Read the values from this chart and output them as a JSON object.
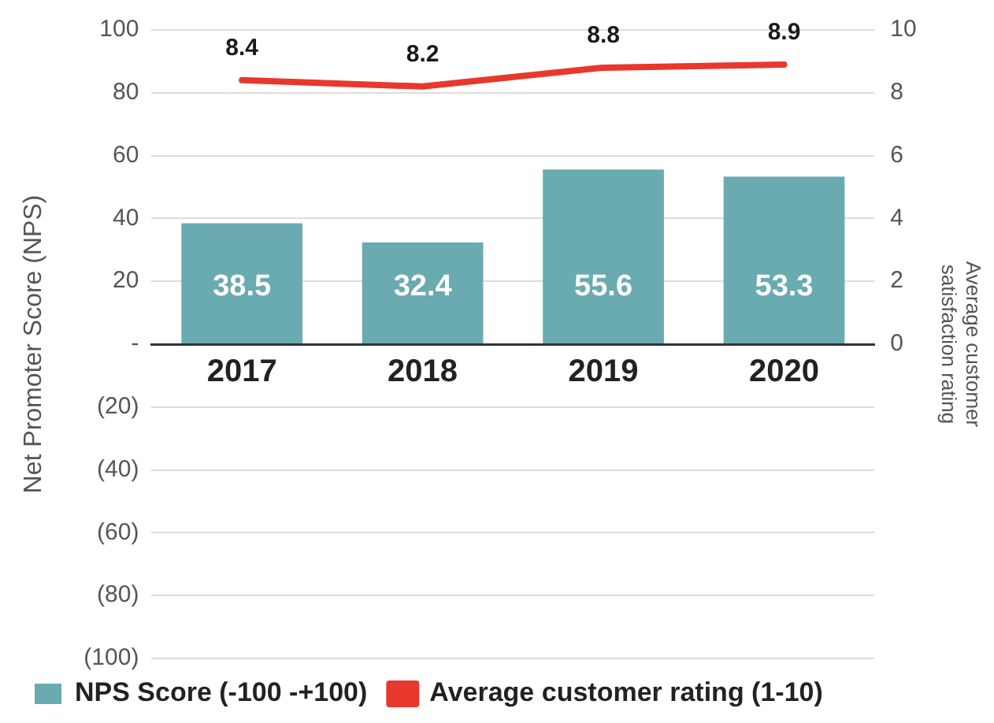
{
  "chart_data": {
    "type": "bar",
    "categories": [
      "2017",
      "2018",
      "2019",
      "2020"
    ],
    "ylabel": "Net Promoter Score (NPS)",
    "y2label": "Average customer satisfaction rating",
    "series": [
      {
        "name": "NPS Score (-100 -+100)",
        "color": "#6aabb1",
        "values": [
          38.5,
          32.4,
          55.6,
          53.3
        ]
      },
      {
        "name": "Average customer rating (1-10)",
        "type": "line",
        "axis": "y2",
        "color": "#e8382e",
        "values": [
          8.4,
          8.2,
          8.8,
          8.9
        ]
      }
    ],
    "ylim": [
      -100,
      100
    ],
    "yticks": [
      {
        "value": -100,
        "label": "(100)"
      },
      {
        "value": -80,
        "label": "(80)"
      },
      {
        "value": -60,
        "label": "(60)"
      },
      {
        "value": -40,
        "label": "(40)"
      },
      {
        "value": -20,
        "label": "(20)"
      },
      {
        "value": 0,
        "label": "-"
      },
      20,
      40,
      60,
      80,
      100
    ],
    "y2lim": [
      -10,
      10
    ],
    "y2ticks": [
      0,
      2,
      4,
      6,
      8,
      10
    ],
    "data_labels": true,
    "grid": "y",
    "legend": "bottom left",
    "marker": "none",
    "line_style": "solid"
  }
}
